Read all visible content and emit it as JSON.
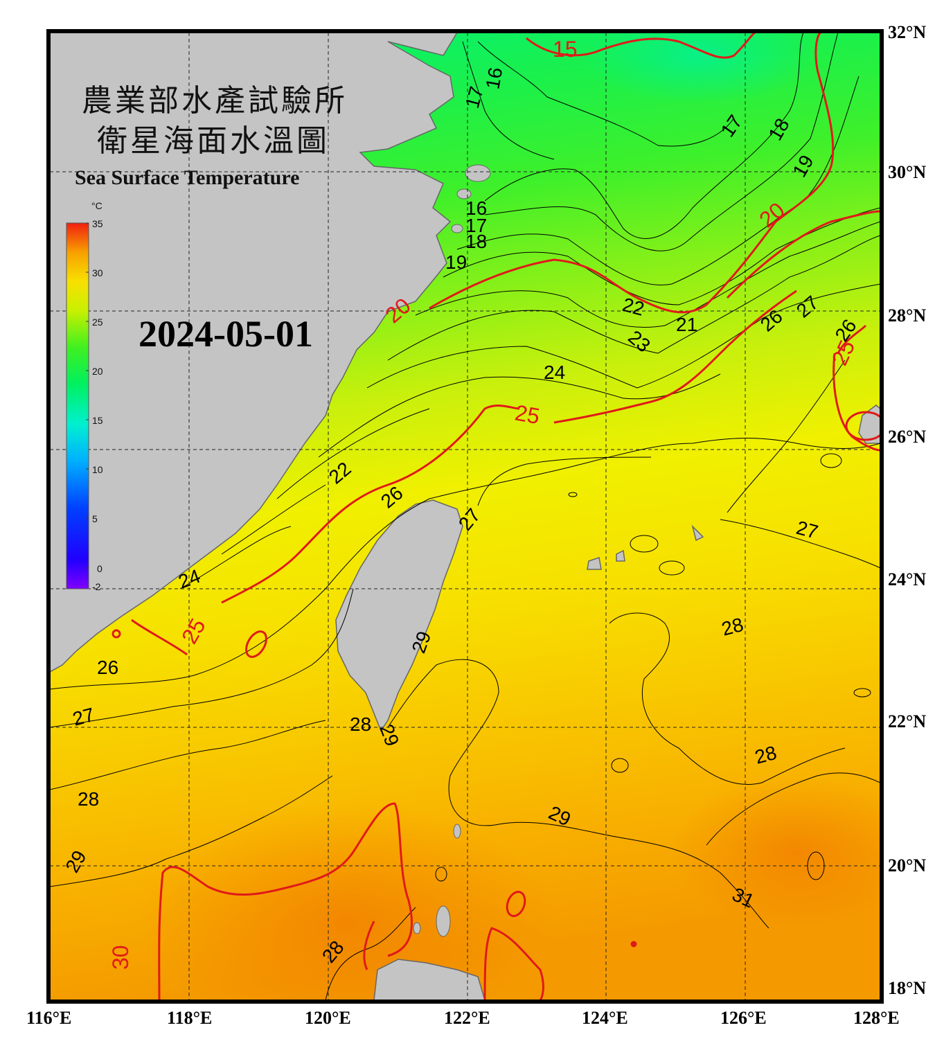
{
  "title": {
    "line1": "農業部水產試驗所",
    "line2": "衛星海面水溫圖",
    "english": "Sea Surface Temperature"
  },
  "date": "2024-05-01",
  "colorbar": {
    "unit": "°C",
    "ticks": [
      "35",
      "30",
      "25",
      "20",
      "15",
      "10",
      "5",
      "0",
      "-2"
    ]
  },
  "axes": {
    "lon_labels": [
      "116°E",
      "118°E",
      "120°E",
      "122°E",
      "124°E",
      "126°E",
      "128°E"
    ],
    "lat_labels": [
      "32°N",
      "30°N",
      "28°N",
      "26°N",
      "24°N",
      "22°N",
      "20°N",
      "18°N"
    ]
  },
  "isotherm_labels_black": [
    "16",
    "17",
    "17",
    "16",
    "17",
    "18",
    "19",
    "16",
    "17",
    "18",
    "19",
    "22",
    "21",
    "23",
    "24",
    "26",
    "27",
    "26",
    "22",
    "26",
    "27",
    "27",
    "24",
    "26",
    "28",
    "27",
    "28",
    "29",
    "28",
    "29",
    "28",
    "29",
    "29",
    "31",
    "28"
  ],
  "isotherm_labels_red": [
    "15",
    "20",
    "20",
    "25",
    "25",
    "25",
    "30",
    "25"
  ],
  "colors": {
    "land": "#c4c4c4",
    "land_edge": "#666666",
    "isotherm": "#000000",
    "isotherm_major": "#e01a1a",
    "frame": "#000000"
  }
}
